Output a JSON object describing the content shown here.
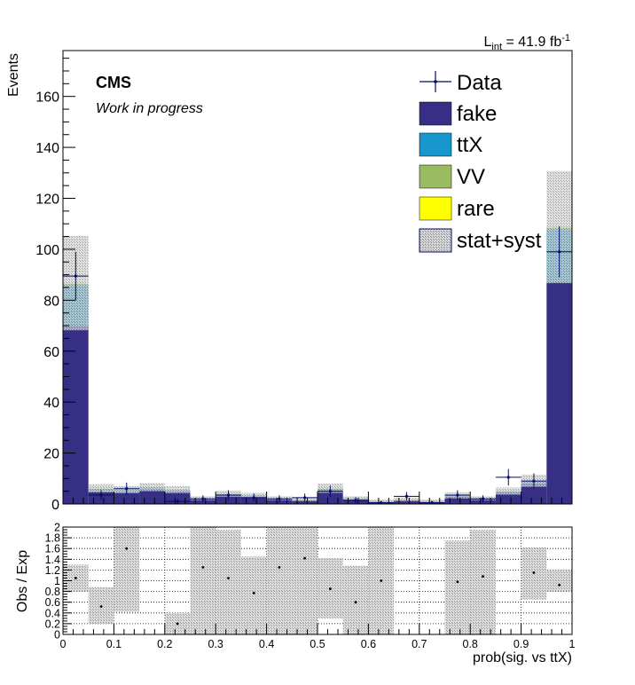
{
  "header": {
    "lumi_L": "L",
    "lumi_sub": "int",
    "lumi_rest": " = 41.9 fb",
    "lumi_exp": "-1",
    "cms": "CMS",
    "work": "Work in progress"
  },
  "colors": {
    "fake": "#372f86",
    "ttX": "#1897cc",
    "VV": "#9bbb61",
    "rare": "#ffff00",
    "unc": "#bbbbbb"
  },
  "chart_data": [
    {
      "type": "bar",
      "stacked": true,
      "title": "",
      "xlabel": "",
      "ylabel": "Events",
      "xlim": [
        0,
        1
      ],
      "ylim": [
        0,
        178
      ],
      "yticks": [
        0,
        20,
        40,
        60,
        80,
        100,
        120,
        140,
        160
      ],
      "bin_edges": [
        0,
        0.05,
        0.1,
        0.15,
        0.2,
        0.25,
        0.3,
        0.35,
        0.4,
        0.45,
        0.5,
        0.55,
        0.6,
        0.65,
        0.7,
        0.75,
        0.8,
        0.85,
        0.9,
        0.95,
        1.0
      ],
      "series": [
        {
          "name": "fake",
          "values": [
            70,
            5,
            4.5,
            5.5,
            5,
            2,
            3.5,
            3,
            2,
            1.5,
            5,
            2,
            1,
            1.5,
            1,
            3,
            2,
            4.5,
            8,
            87
          ]
        },
        {
          "name": "ttX",
          "values": [
            16,
            1,
            1,
            1,
            0.5,
            0.2,
            0.5,
            0.3,
            0.2,
            0.2,
            1,
            0.2,
            0.1,
            0.2,
            0.1,
            0.3,
            0.2,
            0.5,
            1,
            21
          ]
        },
        {
          "name": "VV",
          "values": [
            0.5,
            0.1,
            0.1,
            0.1,
            0.1,
            0.05,
            0.05,
            0.05,
            0.05,
            0.05,
            0.1,
            0.05,
            0.05,
            0.05,
            0.05,
            0.05,
            0.05,
            0.05,
            0.1,
            0.5
          ]
        },
        {
          "name": "rare",
          "values": [
            0.2,
            0.05,
            0.05,
            0.05,
            0.05,
            0.02,
            0.02,
            0.02,
            0.02,
            0.02,
            0.05,
            0.02,
            0.02,
            0.02,
            0.02,
            0.02,
            0.02,
            0.02,
            0.05,
            0.2
          ]
        }
      ],
      "uncertainty": {
        "name": "stat+syst",
        "total": [
          86.7,
          6.15,
          5.65,
          6.65,
          5.65,
          2.27,
          4.07,
          3.37,
          2.27,
          1.77,
          6.15,
          2.27,
          1.17,
          1.77,
          1.17,
          3.37,
          2.27,
          5.07,
          9.15,
          108.7
        ],
        "half_width": [
          18.5,
          1.6,
          1.4,
          1.6,
          1.4,
          0.8,
          1.2,
          1.0,
          0.8,
          0.7,
          1.8,
          0.8,
          0.5,
          0.7,
          0.5,
          1.2,
          0.8,
          1.4,
          2.4,
          22
        ]
      },
      "data": {
        "name": "Data",
        "values": [
          89.5,
          3.5,
          6,
          0,
          1,
          2,
          3.5,
          2.5,
          2,
          2.5,
          5,
          1.5,
          0.5,
          3,
          0.5,
          3.5,
          2,
          10.5,
          9,
          99
        ],
        "errors": [
          9.5,
          1.9,
          2.4,
          0,
          1,
          1.4,
          1.9,
          1.6,
          1.4,
          1.6,
          2.2,
          1.2,
          0.7,
          1.7,
          0.7,
          1.9,
          1.4,
          3.2,
          3,
          10
        ]
      },
      "legend": {
        "position": "top-right",
        "entries": [
          "Data",
          "fake",
          "ttX",
          "VV",
          "rare",
          "stat+syst"
        ]
      }
    },
    {
      "type": "scatter",
      "title": "",
      "xlabel": "prob(sig. vs ttX)",
      "ylabel": "Obs / Exp",
      "xlim": [
        0,
        1
      ],
      "ylim": [
        0,
        2
      ],
      "yticks": [
        0,
        0.2,
        0.4,
        0.6,
        0.8,
        1,
        1.2,
        1.4,
        1.6,
        1.8,
        2
      ],
      "ytick_labels": [
        "0",
        "0.2",
        "0.4",
        "0.6",
        "0.8",
        "1",
        "1.2",
        "1.4",
        "1.6",
        "1.8",
        "2"
      ],
      "xticks": [
        0,
        0.1,
        0.2,
        0.3,
        0.4,
        0.5,
        0.6,
        0.7,
        0.8,
        0.9,
        1
      ],
      "xtick_labels": [
        "0",
        "0.1",
        "0.2",
        "0.3",
        "0.4",
        "0.5",
        "0.6",
        "0.7",
        "0.8",
        "0.9",
        "1"
      ],
      "x": [
        0.025,
        0.075,
        0.125,
        0.175,
        0.225,
        0.275,
        0.325,
        0.375,
        0.425,
        0.475,
        0.525,
        0.575,
        0.625,
        0.675,
        0.725,
        0.775,
        0.825,
        0.875,
        0.925,
        0.975
      ],
      "ratio": [
        1.05,
        0.52,
        1.6,
        null,
        0.2,
        1.25,
        1.05,
        0.77,
        1.25,
        1.42,
        0.85,
        0.6,
        1.0,
        null,
        null,
        0.98,
        1.08,
        null,
        1.15,
        0.92
      ],
      "band_low": [
        0.8,
        0.2,
        0.42,
        null,
        0,
        0,
        0,
        0,
        0,
        0,
        0.3,
        0,
        0,
        null,
        null,
        0,
        0,
        null,
        0.65,
        0.8
      ],
      "band_high": [
        1.3,
        0.88,
        2.0,
        null,
        0.4,
        2.0,
        1.95,
        1.45,
        2.0,
        2.0,
        1.42,
        1.28,
        2.0,
        null,
        null,
        1.75,
        1.95,
        null,
        1.62,
        1.2
      ]
    }
  ]
}
